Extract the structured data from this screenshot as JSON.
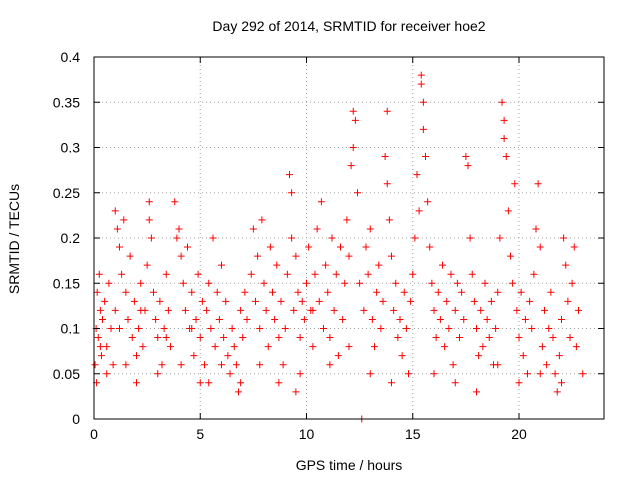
{
  "chart_data": {
    "type": "scatter",
    "title": "Day 292 of 2014, SRMTID for receiver hoe2",
    "xlabel": "GPS time / hours",
    "ylabel": "SRMTID / TECUs",
    "xlim": [
      0,
      24
    ],
    "ylim": [
      0,
      0.4
    ],
    "xticks": [
      0,
      5,
      10,
      15,
      20
    ],
    "xtick_labels": [
      "0",
      "5",
      "10",
      "15",
      "20"
    ],
    "yticks": [
      0,
      0.05,
      0.1,
      0.15,
      0.2,
      0.25,
      0.3,
      0.35,
      0.4
    ],
    "ytick_labels": [
      "0",
      "0.05",
      "0.1",
      "0.15",
      "0.2",
      "0.25",
      "0.3",
      "0.35",
      "0.4"
    ],
    "grid": true,
    "marker": "+",
    "color": "#ff0000",
    "series": [
      {
        "name": "SRMTID",
        "points": [
          [
            0.05,
            0.06
          ],
          [
            0.1,
            0.1
          ],
          [
            0.12,
            0.04
          ],
          [
            0.15,
            0.14
          ],
          [
            0.2,
            0.09
          ],
          [
            0.25,
            0.16
          ],
          [
            0.3,
            0.12
          ],
          [
            0.35,
            0.07
          ],
          [
            0.4,
            0.11
          ],
          [
            0.5,
            0.13
          ],
          [
            0.6,
            0.08
          ],
          [
            0.7,
            0.15
          ],
          [
            0.8,
            0.1
          ],
          [
            0.9,
            0.06
          ],
          [
            1.0,
            0.12
          ],
          [
            1.0,
            0.23
          ],
          [
            1.1,
            0.21
          ],
          [
            1.2,
            0.19
          ],
          [
            1.3,
            0.16
          ],
          [
            1.4,
            0.22
          ],
          [
            1.5,
            0.14
          ],
          [
            1.6,
            0.11
          ],
          [
            1.7,
            0.18
          ],
          [
            1.8,
            0.09
          ],
          [
            1.9,
            0.13
          ],
          [
            2.0,
            0.04
          ],
          [
            2.0,
            0.07
          ],
          [
            2.1,
            0.1
          ],
          [
            2.2,
            0.15
          ],
          [
            2.3,
            0.08
          ],
          [
            2.4,
            0.12
          ],
          [
            2.5,
            0.17
          ],
          [
            2.6,
            0.24
          ],
          [
            2.6,
            0.22
          ],
          [
            2.7,
            0.2
          ],
          [
            2.8,
            0.14
          ],
          [
            2.9,
            0.11
          ],
          [
            3.0,
            0.09
          ],
          [
            3.0,
            0.05
          ],
          [
            3.1,
            0.13
          ],
          [
            3.2,
            0.06
          ],
          [
            3.3,
            0.1
          ],
          [
            3.4,
            0.16
          ],
          [
            3.5,
            0.12
          ],
          [
            3.6,
            0.08
          ],
          [
            3.8,
            0.24
          ],
          [
            3.9,
            0.2
          ],
          [
            4.0,
            0.21
          ],
          [
            4.1,
            0.18
          ],
          [
            4.2,
            0.15
          ],
          [
            4.3,
            0.12
          ],
          [
            4.4,
            0.19
          ],
          [
            4.5,
            0.1
          ],
          [
            4.6,
            0.14
          ],
          [
            4.7,
            0.07
          ],
          [
            4.8,
            0.11
          ],
          [
            4.9,
            0.16
          ],
          [
            5.0,
            0.04
          ],
          [
            5.0,
            0.09
          ],
          [
            5.1,
            0.13
          ],
          [
            5.2,
            0.06
          ],
          [
            5.3,
            0.12
          ],
          [
            5.4,
            0.15
          ],
          [
            5.5,
            0.1
          ],
          [
            5.6,
            0.2
          ],
          [
            5.7,
            0.08
          ],
          [
            5.8,
            0.14
          ],
          [
            5.9,
            0.11
          ],
          [
            6.0,
            0.17
          ],
          [
            6.1,
            0.09
          ],
          [
            6.2,
            0.13
          ],
          [
            6.3,
            0.07
          ],
          [
            6.4,
            0.05
          ],
          [
            6.5,
            0.1
          ],
          [
            6.6,
            0.08
          ],
          [
            6.7,
            0.06
          ],
          [
            6.8,
            0.03
          ],
          [
            6.9,
            0.12
          ],
          [
            7.0,
            0.09
          ],
          [
            7.1,
            0.14
          ],
          [
            7.2,
            0.11
          ],
          [
            7.4,
            0.16
          ],
          [
            7.5,
            0.21
          ],
          [
            7.6,
            0.13
          ],
          [
            7.7,
            0.18
          ],
          [
            7.8,
            0.1
          ],
          [
            7.9,
            0.22
          ],
          [
            8.0,
            0.15
          ],
          [
            8.1,
            0.12
          ],
          [
            8.2,
            0.08
          ],
          [
            8.3,
            0.19
          ],
          [
            8.4,
            0.14
          ],
          [
            8.5,
            0.11
          ],
          [
            8.6,
            0.17
          ],
          [
            8.7,
            0.09
          ],
          [
            8.8,
            0.13
          ],
          [
            8.9,
            0.06
          ],
          [
            9.0,
            0.1
          ],
          [
            9.1,
            0.16
          ],
          [
            9.2,
            0.27
          ],
          [
            9.3,
            0.25
          ],
          [
            9.3,
            0.2
          ],
          [
            9.4,
            0.12
          ],
          [
            9.5,
            0.03
          ],
          [
            9.5,
            0.18
          ],
          [
            9.6,
            0.14
          ],
          [
            9.7,
            0.09
          ],
          [
            9.8,
            0.13
          ],
          [
            9.9,
            0.11
          ],
          [
            10.0,
            0.15
          ],
          [
            10.1,
            0.19
          ],
          [
            10.2,
            0.12
          ],
          [
            10.3,
            0.08
          ],
          [
            10.4,
            0.16
          ],
          [
            10.5,
            0.21
          ],
          [
            10.6,
            0.13
          ],
          [
            10.7,
            0.24
          ],
          [
            10.8,
            0.1
          ],
          [
            10.9,
            0.17
          ],
          [
            11.0,
            0.14
          ],
          [
            11.1,
            0.09
          ],
          [
            11.2,
            0.2
          ],
          [
            11.3,
            0.12
          ],
          [
            11.4,
            0.16
          ],
          [
            11.5,
            0.07
          ],
          [
            11.6,
            0.19
          ],
          [
            11.7,
            0.11
          ],
          [
            11.8,
            0.15
          ],
          [
            11.9,
            0.22
          ],
          [
            12.0,
            0.18
          ],
          [
            12.1,
            0.28
          ],
          [
            12.2,
            0.3
          ],
          [
            12.2,
            0.34
          ],
          [
            12.3,
            0.33
          ],
          [
            12.4,
            0.25
          ],
          [
            12.5,
            0.15
          ],
          [
            12.6,
            0.0
          ],
          [
            12.7,
            0.12
          ],
          [
            12.8,
            0.19
          ],
          [
            12.9,
            0.16
          ],
          [
            13.0,
            0.21
          ],
          [
            13.1,
            0.11
          ],
          [
            13.2,
            0.08
          ],
          [
            13.3,
            0.14
          ],
          [
            13.4,
            0.17
          ],
          [
            13.5,
            0.1
          ],
          [
            13.6,
            0.13
          ],
          [
            13.7,
            0.29
          ],
          [
            13.8,
            0.34
          ],
          [
            13.8,
            0.26
          ],
          [
            13.9,
            0.22
          ],
          [
            14.0,
            0.18
          ],
          [
            14.1,
            0.12
          ],
          [
            14.2,
            0.15
          ],
          [
            14.3,
            0.09
          ],
          [
            14.4,
            0.11
          ],
          [
            14.5,
            0.07
          ],
          [
            14.6,
            0.14
          ],
          [
            14.7,
            0.1
          ],
          [
            14.8,
            0.05
          ],
          [
            14.9,
            0.13
          ],
          [
            15.0,
            0.16
          ],
          [
            15.1,
            0.2
          ],
          [
            15.2,
            0.27
          ],
          [
            15.3,
            0.23
          ],
          [
            15.4,
            0.38
          ],
          [
            15.4,
            0.37
          ],
          [
            15.5,
            0.35
          ],
          [
            15.5,
            0.32
          ],
          [
            15.6,
            0.29
          ],
          [
            15.7,
            0.24
          ],
          [
            15.8,
            0.19
          ],
          [
            15.9,
            0.15
          ],
          [
            16.0,
            0.12
          ],
          [
            16.1,
            0.09
          ],
          [
            16.2,
            0.14
          ],
          [
            16.3,
            0.11
          ],
          [
            16.4,
            0.17
          ],
          [
            16.5,
            0.08
          ],
          [
            16.6,
            0.13
          ],
          [
            16.7,
            0.1
          ],
          [
            16.8,
            0.16
          ],
          [
            16.9,
            0.06
          ],
          [
            17.0,
            0.12
          ],
          [
            17.1,
            0.15
          ],
          [
            17.2,
            0.09
          ],
          [
            17.3,
            0.14
          ],
          [
            17.4,
            0.11
          ],
          [
            17.5,
            0.29
          ],
          [
            17.6,
            0.28
          ],
          [
            17.7,
            0.2
          ],
          [
            17.8,
            0.16
          ],
          [
            17.9,
            0.13
          ],
          [
            18.0,
            0.1
          ],
          [
            18.1,
            0.07
          ],
          [
            18.2,
            0.12
          ],
          [
            18.3,
            0.08
          ],
          [
            18.4,
            0.15
          ],
          [
            18.5,
            0.11
          ],
          [
            18.6,
            0.09
          ],
          [
            18.7,
            0.13
          ],
          [
            18.8,
            0.06
          ],
          [
            18.9,
            0.1
          ],
          [
            19.0,
            0.14
          ],
          [
            19.1,
            0.2
          ],
          [
            19.2,
            0.35
          ],
          [
            19.3,
            0.33
          ],
          [
            19.3,
            0.31
          ],
          [
            19.4,
            0.29
          ],
          [
            19.5,
            0.23
          ],
          [
            19.6,
            0.18
          ],
          [
            19.7,
            0.15
          ],
          [
            19.8,
            0.26
          ],
          [
            19.9,
            0.12
          ],
          [
            20.0,
            0.09
          ],
          [
            20.1,
            0.14
          ],
          [
            20.2,
            0.07
          ],
          [
            20.3,
            0.11
          ],
          [
            20.4,
            0.05
          ],
          [
            20.5,
            0.13
          ],
          [
            20.6,
            0.1
          ],
          [
            20.7,
            0.16
          ],
          [
            20.8,
            0.21
          ],
          [
            20.9,
            0.26
          ],
          [
            21.0,
            0.19
          ],
          [
            21.1,
            0.08
          ],
          [
            21.2,
            0.12
          ],
          [
            21.3,
            0.06
          ],
          [
            21.4,
            0.1
          ],
          [
            21.5,
            0.14
          ],
          [
            21.6,
            0.09
          ],
          [
            21.7,
            0.05
          ],
          [
            21.8,
            0.03
          ],
          [
            21.9,
            0.07
          ],
          [
            22.0,
            0.11
          ],
          [
            22.1,
            0.2
          ],
          [
            22.2,
            0.17
          ],
          [
            22.3,
            0.13
          ],
          [
            22.4,
            0.09
          ],
          [
            22.5,
            0.15
          ],
          [
            22.6,
            0.19
          ],
          [
            22.7,
            0.08
          ],
          [
            22.8,
            0.12
          ],
          [
            0.3,
            0.08
          ],
          [
            0.6,
            0.05
          ],
          [
            1.2,
            0.1
          ],
          [
            1.5,
            0.06
          ],
          [
            2.2,
            0.12
          ],
          [
            3.4,
            0.09
          ],
          [
            4.1,
            0.06
          ],
          [
            4.6,
            0.1
          ],
          [
            5.4,
            0.04
          ],
          [
            6.0,
            0.06
          ],
          [
            6.9,
            0.04
          ],
          [
            7.8,
            0.06
          ],
          [
            8.7,
            0.04
          ],
          [
            9.7,
            0.05
          ],
          [
            10.3,
            0.12
          ],
          [
            11.1,
            0.06
          ],
          [
            12.0,
            0.08
          ],
          [
            13.0,
            0.05
          ],
          [
            14.0,
            0.04
          ],
          [
            16.0,
            0.05
          ],
          [
            17.0,
            0.04
          ],
          [
            18.0,
            0.03
          ],
          [
            19.0,
            0.06
          ],
          [
            20.0,
            0.04
          ],
          [
            21.0,
            0.05
          ],
          [
            22.0,
            0.04
          ],
          [
            23.0,
            0.05
          ]
        ]
      }
    ]
  }
}
